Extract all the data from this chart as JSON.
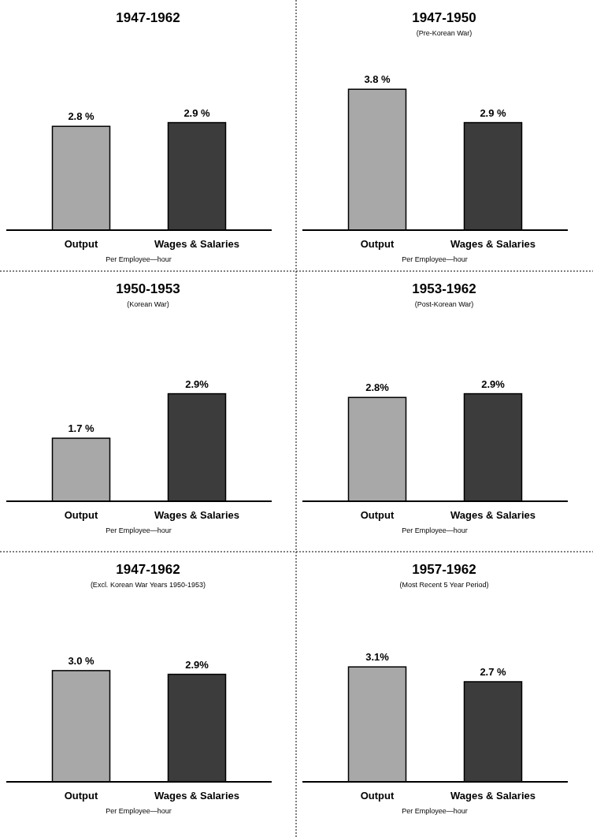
{
  "chart_data": [
    {
      "type": "bar",
      "title": "1947-1962",
      "categories": [
        "Output",
        "Wages & Salaries"
      ],
      "xlabel": "Per Employee—hour",
      "colors": [
        "#a8a8a8",
        "#3c3c3c"
      ],
      "values": [
        2.8,
        2.9
      ],
      "value_labels": [
        "2.8 %",
        "2.9 %"
      ]
    },
    {
      "type": "bar",
      "title": "1947-1950",
      "subtitle": "(Pre-Korean War)",
      "categories": [
        "Output",
        "Wages & Salaries"
      ],
      "xlabel": "Per Employee—hour",
      "colors": [
        "#a8a8a8",
        "#3c3c3c"
      ],
      "values": [
        3.8,
        2.9
      ],
      "value_labels": [
        "3.8 %",
        "2.9 %"
      ]
    },
    {
      "type": "bar",
      "title": "1950-1953",
      "subtitle": "(Korean War)",
      "categories": [
        "Output",
        "Wages & Salaries"
      ],
      "xlabel": "Per Employee—hour",
      "colors": [
        "#a8a8a8",
        "#3c3c3c"
      ],
      "values": [
        1.7,
        2.9
      ],
      "value_labels": [
        "1.7 %",
        "2.9%"
      ]
    },
    {
      "type": "bar",
      "title": "1953-1962",
      "subtitle": "(Post-Korean War)",
      "categories": [
        "Output",
        "Wages & Salaries"
      ],
      "xlabel": "Per Employee—hour",
      "colors": [
        "#a8a8a8",
        "#3c3c3c"
      ],
      "values": [
        2.8,
        2.9
      ],
      "value_labels": [
        "2.8%",
        "2.9%"
      ]
    },
    {
      "type": "bar",
      "title": "1947-1962",
      "subtitle": "(Excl. Korean War Years 1950-1953)",
      "categories": [
        "Output",
        "Wages & Salaries"
      ],
      "xlabel": "Per Employee—hour",
      "colors": [
        "#a8a8a8",
        "#3c3c3c"
      ],
      "values": [
        3.0,
        2.9
      ],
      "value_labels": [
        "3.0 %",
        "2.9%"
      ]
    },
    {
      "type": "bar",
      "title": "1957-1962",
      "subtitle": "(Most Recent 5 Year Period)",
      "categories": [
        "Output",
        "Wages & Salaries"
      ],
      "xlabel": "Per Employee—hour",
      "colors": [
        "#a8a8a8",
        "#3c3c3c"
      ],
      "values": [
        3.1,
        2.7
      ],
      "value_labels": [
        "3.1%",
        "2.7 %"
      ]
    }
  ]
}
